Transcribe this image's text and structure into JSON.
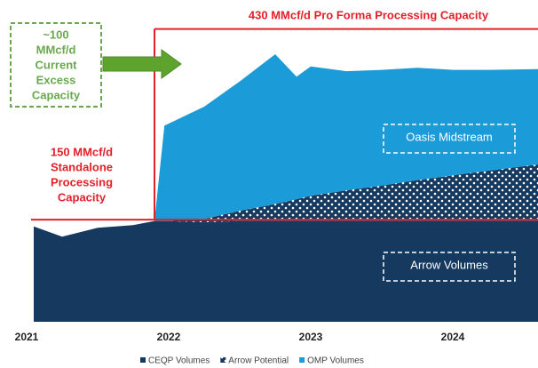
{
  "chart_data": {
    "type": "stacked_area",
    "x": [
      2021.05,
      2021.25,
      2021.5,
      2021.75,
      2021.9,
      2021.97,
      2022.25,
      2022.5,
      2022.75,
      2022.9,
      2023.0,
      2023.25,
      2023.5,
      2023.75,
      2024.0,
      2024.25,
      2024.6
    ],
    "series": [
      {
        "name": "CEQP Volumes",
        "color": "#163a5f",
        "values": [
          140,
          125,
          138,
          142,
          148,
          148,
          146,
          148,
          148,
          148,
          148,
          148,
          148,
          148,
          148,
          148,
          148
        ]
      },
      {
        "name": "Arrow Potential",
        "color": "#163a5f",
        "pattern": "dots",
        "values": [
          0,
          0,
          0,
          0,
          0,
          0,
          5,
          15,
          25,
          32,
          37,
          45,
          52,
          60,
          67,
          74,
          83
        ]
      },
      {
        "name": "OMP Volumes",
        "color": "#1b9bd7",
        "values": [
          0,
          0,
          0,
          0,
          0,
          140,
          165,
          190,
          220,
          180,
          190,
          175,
          170,
          165,
          155,
          148,
          140
        ]
      }
    ],
    "xlim": [
      2021,
      2024.6
    ],
    "xticks": [
      2021,
      2022,
      2023,
      2024
    ],
    "ylim": [
      0,
      453
    ],
    "capacity": [
      {
        "value": 150,
        "lines": [
          "150 MMcf/d",
          "Standalone",
          "Processing",
          "Capacity"
        ]
      },
      {
        "value": 430,
        "lines": [
          "430 MMcf/d Pro Forma Processing Capacity"
        ]
      }
    ],
    "capacity_step_x": 2021.9,
    "capacity_color": "#e3202a",
    "excess_note": [
      "~100",
      "MMcf/d",
      "Current",
      "Excess",
      "Capacity"
    ],
    "area_labels": [
      "Oasis Midstream",
      "Arrow Volumes"
    ]
  }
}
